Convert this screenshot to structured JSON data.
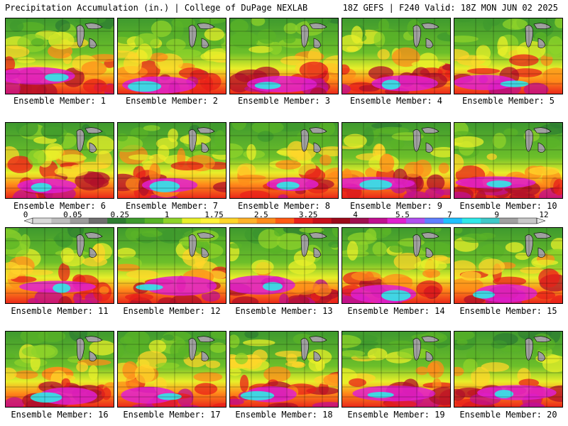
{
  "header": {
    "title": "Precipitation Accumulation (in.) | College of DuPage NEXLAB",
    "run_info": "18Z GEFS | F240 Valid: 18Z MON JUN 02 2025"
  },
  "colorbar": {
    "labels": [
      "0",
      "0.05",
      "0.25",
      "1",
      "1.75",
      "2.5",
      "3.25",
      "4",
      "5.5",
      "7",
      "9",
      "12"
    ],
    "colors": [
      "#d9d9d9",
      "#bdbdbd",
      "#9c9c9c",
      "#6e6e6e",
      "#2e7d32",
      "#3f9a2e",
      "#59b327",
      "#8fd32a",
      "#e8ef2a",
      "#fff23a",
      "#ffd52a",
      "#ffb22a",
      "#ff8c1a",
      "#ff5a14",
      "#e8201a",
      "#c8101a",
      "#9c0a1a",
      "#a01050",
      "#c01090",
      "#e020d0",
      "#b050f0",
      "#6080ff",
      "#20c0ff",
      "#30e8e8",
      "#40c8c8",
      "#a0a0a0",
      "#c8c8c8"
    ]
  },
  "members": [
    {
      "label": "Ensemble Member: 1"
    },
    {
      "label": "Ensemble Member: 2"
    },
    {
      "label": "Ensemble Member: 3"
    },
    {
      "label": "Ensemble Member: 4"
    },
    {
      "label": "Ensemble Member: 5"
    },
    {
      "label": "Ensemble Member: 6"
    },
    {
      "label": "Ensemble Member: 7"
    },
    {
      "label": "Ensemble Member: 8"
    },
    {
      "label": "Ensemble Member: 9"
    },
    {
      "label": "Ensemble Member: 10"
    },
    {
      "label": "Ensemble Member: 11"
    },
    {
      "label": "Ensemble Member: 12"
    },
    {
      "label": "Ensemble Member: 13"
    },
    {
      "label": "Ensemble Member: 14"
    },
    {
      "label": "Ensemble Member: 15"
    },
    {
      "label": "Ensemble Member: 16"
    },
    {
      "label": "Ensemble Member: 17"
    },
    {
      "label": "Ensemble Member: 18"
    },
    {
      "label": "Ensemble Member: 19"
    },
    {
      "label": "Ensemble Member: 20"
    }
  ]
}
